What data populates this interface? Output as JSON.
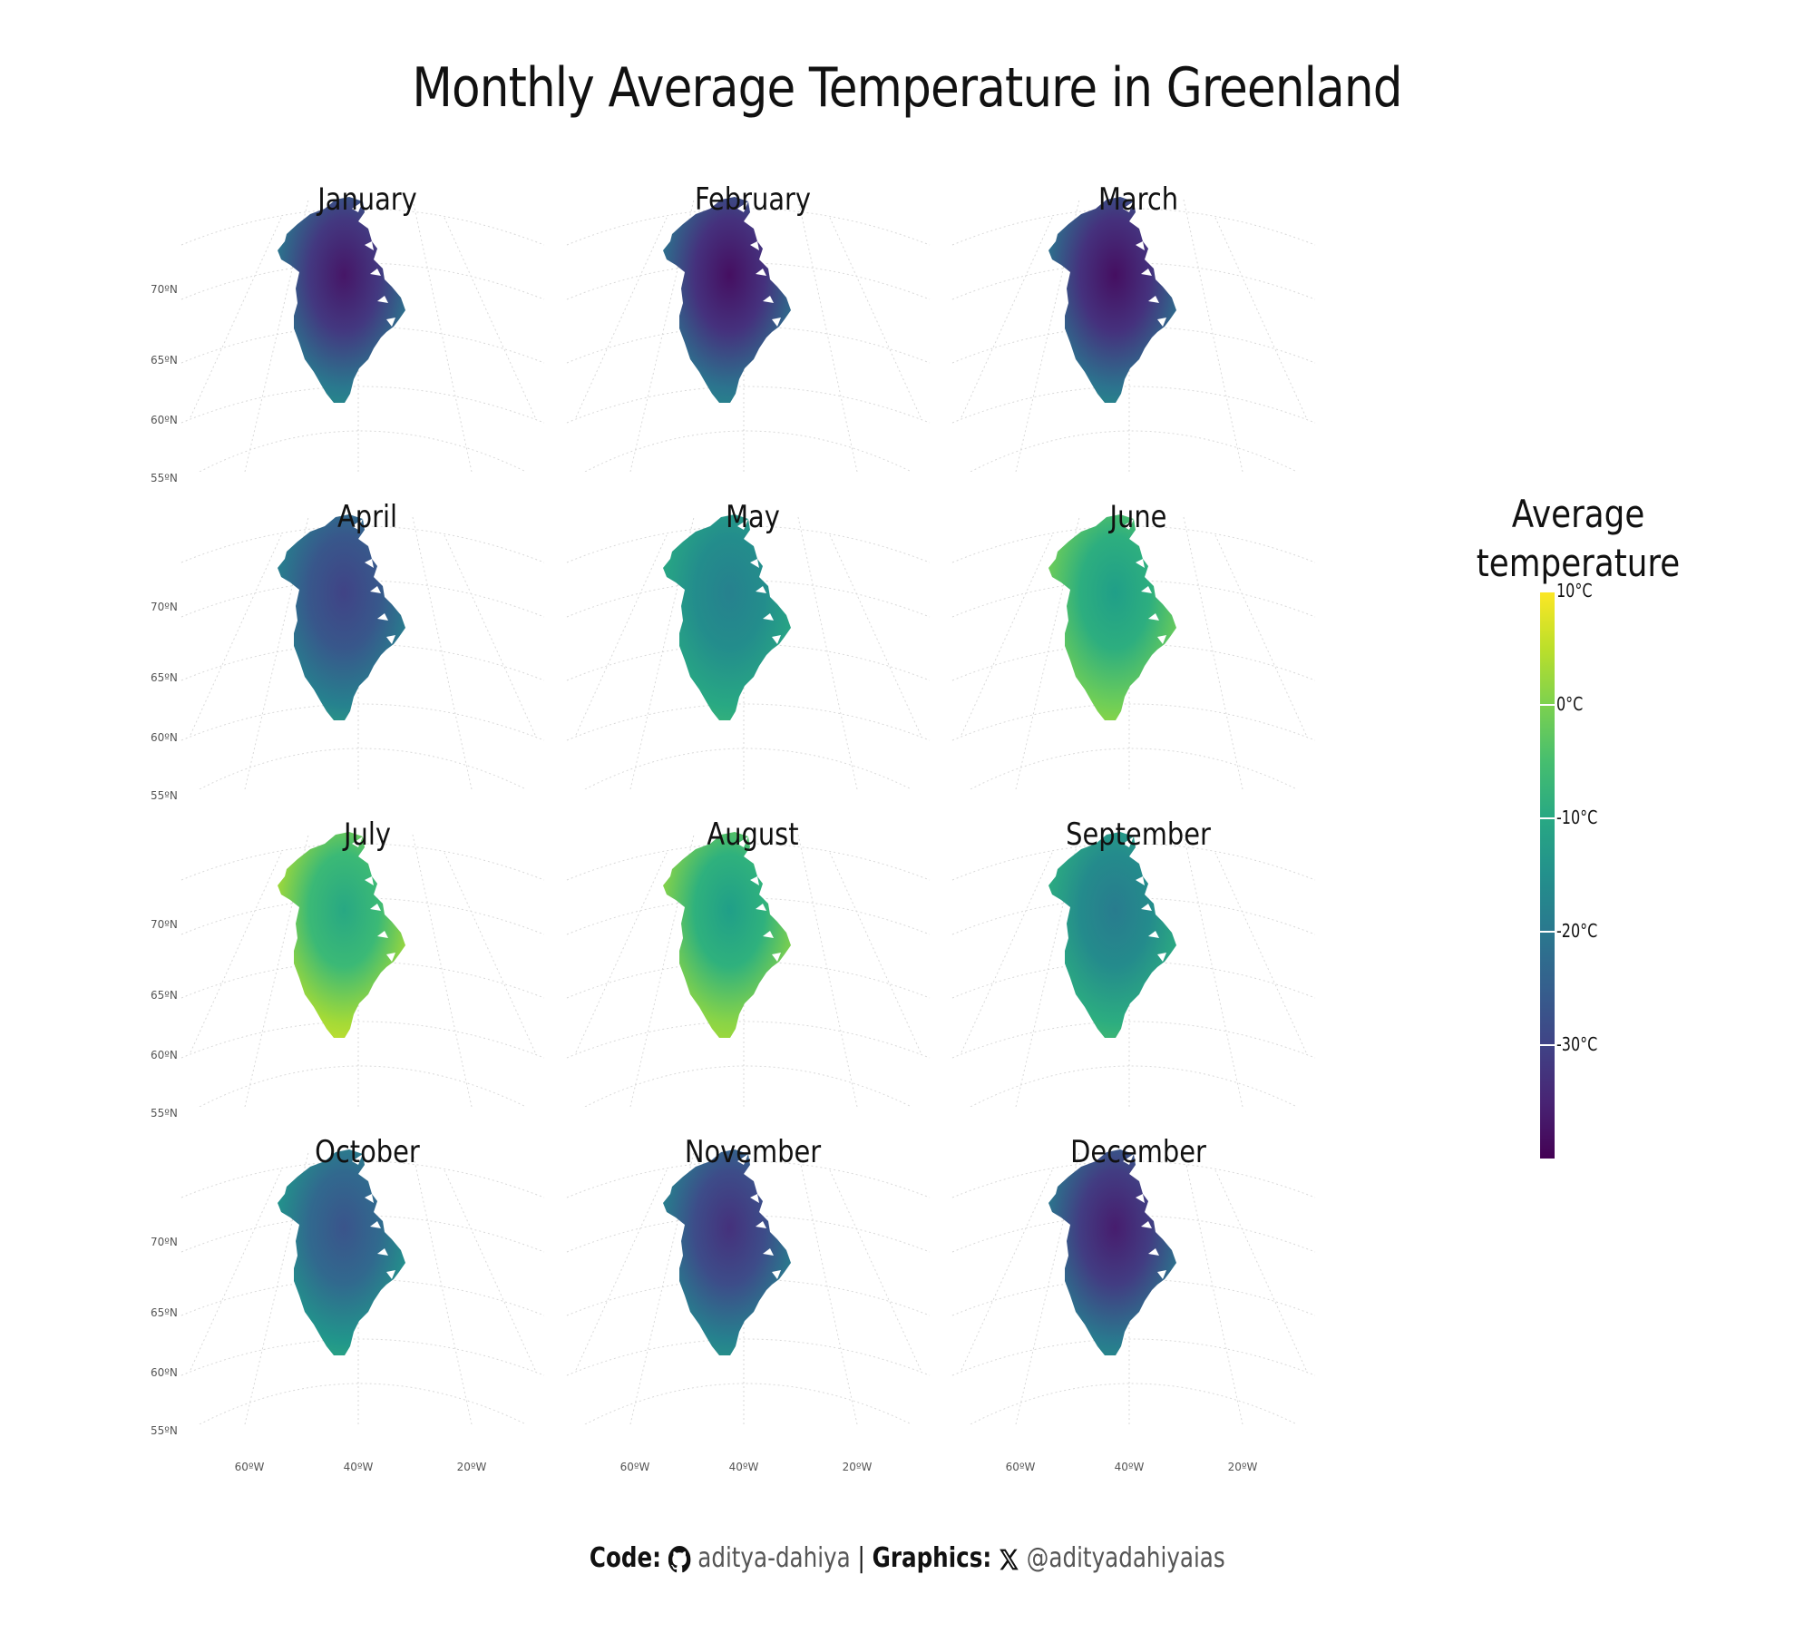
{
  "title": "Monthly Average Temperature in Greenland",
  "lat_labels": [
    "70ºN",
    "65ºN",
    "60ºN",
    "55ºN"
  ],
  "lon_labels": [
    "60ºW",
    "40ºW",
    "20ºW"
  ],
  "legend": {
    "title_line1": "Average",
    "title_line2": "temperature",
    "ticks": [
      "10°C",
      "0°C",
      "-10°C",
      "-20°C",
      "-30°C"
    ],
    "colorscale": "viridis",
    "range_c": [
      -40,
      10
    ]
  },
  "months": [
    {
      "name": "January",
      "edge_c": -20,
      "inland_c": -37,
      "south_c": -12
    },
    {
      "name": "February",
      "edge_c": -21,
      "inland_c": -38,
      "south_c": -13
    },
    {
      "name": "March",
      "edge_c": -21,
      "inland_c": -38,
      "south_c": -12
    },
    {
      "name": "April",
      "edge_c": -18,
      "inland_c": -30,
      "south_c": -8
    },
    {
      "name": "May",
      "edge_c": -10,
      "inland_c": -18,
      "south_c": -5
    },
    {
      "name": "June",
      "edge_c": -1,
      "inland_c": -12,
      "south_c": 4
    },
    {
      "name": "July",
      "edge_c": 3,
      "inland_c": -10,
      "south_c": 8
    },
    {
      "name": "August",
      "edge_c": 1,
      "inland_c": -12,
      "south_c": 5
    },
    {
      "name": "September",
      "edge_c": -9,
      "inland_c": -19,
      "south_c": -3
    },
    {
      "name": "October",
      "edge_c": -14,
      "inland_c": -27,
      "south_c": -7
    },
    {
      "name": "November",
      "edge_c": -18,
      "inland_c": -33,
      "south_c": -10
    },
    {
      "name": "December",
      "edge_c": -20,
      "inland_c": -36,
      "south_c": -12
    }
  ],
  "caption": {
    "code_label": "Code:",
    "code_handle": "aditya-dahiya",
    "separator": "|",
    "graphics_label": "Graphics:",
    "graphics_handle": "@adityadahiyaias",
    "code_icon": "github-icon",
    "graphics_icon": "x-logo-icon"
  }
}
